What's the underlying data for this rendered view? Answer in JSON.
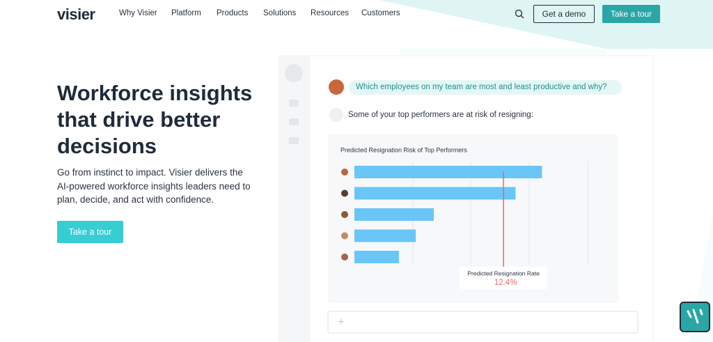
{
  "nav": {
    "logo": "visier",
    "links": [
      "Why Visier",
      "Platform",
      "Products",
      "Solutions",
      "Resources",
      "Customers"
    ],
    "demo_button": "Get a demo",
    "tour_button": "Take a tour"
  },
  "hero": {
    "title": "Workforce insights that drive better decisions",
    "text": "Go from instinct to impact. Visier delivers the AI-powered workforce insights leaders need to plan, decide, and act with confidence.",
    "button": "Take a tour"
  },
  "chat": {
    "question": "Which employees on my team are most and least productive and why?",
    "answer": "Some of your top performers are at risk of resigning:",
    "chart": {
      "type": "bar",
      "title": "Predicted Resignation Risk of Top Performers",
      "values": [
        15.6,
        13.4,
        6.6,
        5.1,
        3.7
      ],
      "xlim": [
        0,
        19.4
      ],
      "color": "#69c6f6",
      "reference": {
        "label": "Predicted Resignation Rate",
        "value": 12.4,
        "value_label": "12.4%",
        "color": "#e8666b"
      }
    }
  }
}
